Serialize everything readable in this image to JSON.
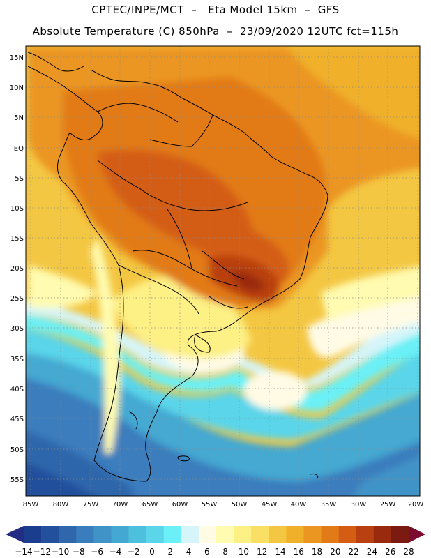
{
  "title": {
    "line1": "CPTEC/INPE/MCT  –   Eta Model 15km  –  GFS",
    "line2": "Absolute Temperature (C) 850hPa  –  23/09/2020 12UTC fct=115h"
  },
  "map": {
    "region": "South America",
    "lat_labels": [
      "15N",
      "10N",
      "5N",
      "EQ",
      "5S",
      "10S",
      "15S",
      "20S",
      "25S",
      "30S",
      "35S",
      "40S",
      "45S",
      "50S",
      "55S"
    ],
    "lon_labels": [
      "85W",
      "80W",
      "75W",
      "70W",
      "65W",
      "60W",
      "55W",
      "50W",
      "45W",
      "40W",
      "35W",
      "30W",
      "25W",
      "20W"
    ]
  },
  "colorbar": {
    "labels": [
      "-14",
      "-12",
      "-10",
      "-8",
      "-6",
      "-4",
      "-2",
      "0",
      "2",
      "4",
      "6",
      "8",
      "10",
      "12",
      "14",
      "16",
      "18",
      "20",
      "22",
      "24",
      "26",
      "28"
    ],
    "colors": [
      "#1b3d8e",
      "#23509c",
      "#2f66ac",
      "#3a7dbd",
      "#3f93c7",
      "#44a9d2",
      "#4dc0de",
      "#5ad5ea",
      "#6af0f6",
      "#d5f5fa",
      "#fffbe5",
      "#fffbb0",
      "#fdf085",
      "#f9df64",
      "#f4c742",
      "#f0b02a",
      "#eb9620",
      "#e27a18",
      "#d45d13",
      "#b94010",
      "#9a2a0e",
      "#7a1a10"
    ],
    "low_arrow_color": "#232c82",
    "high_arrow_color": "#7c0b30"
  }
}
